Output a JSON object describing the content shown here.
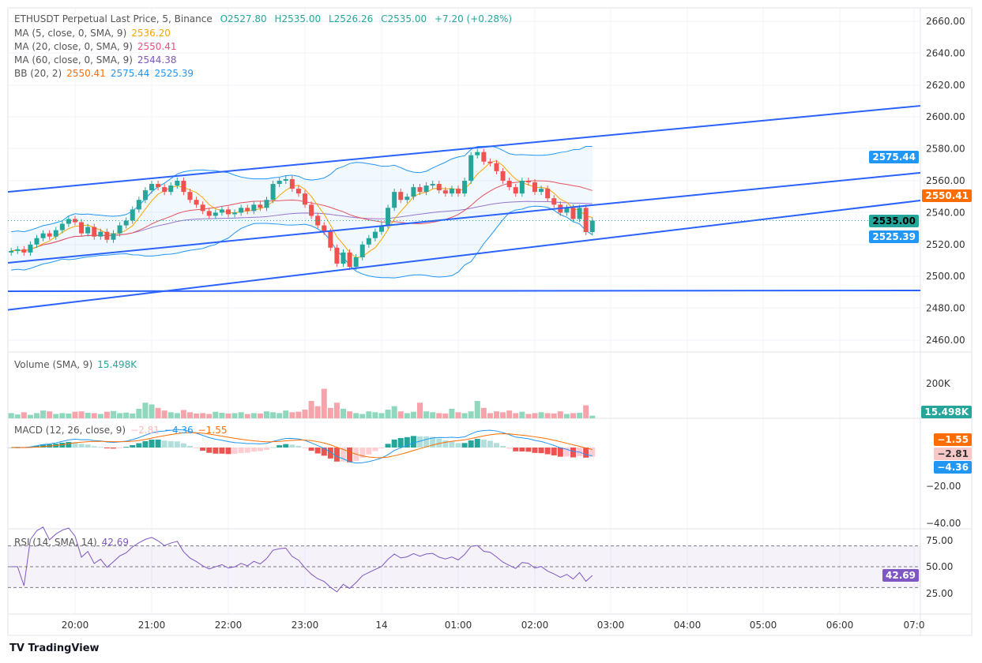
{
  "legend": {
    "title": "ETHUSDT Perpetual Last Price, 5, Binance",
    "ohlc": [
      "O2527.80",
      "H2535.00",
      "L2526.26",
      "C2535.00",
      "+7.20 (+0.28%)"
    ],
    "ma5": {
      "label": "MA (5, close, 0, SMA, 9)",
      "value": "2536.20"
    },
    "ma20": {
      "label": "MA (20, close, 0, SMA, 9)",
      "value": "2550.41"
    },
    "ma60": {
      "label": "MA (60, close, 0, SMA, 9)",
      "value": "2544.38"
    },
    "bb": {
      "label": "BB (20, 2)",
      "basis": "2550.41",
      "upper": "2575.44",
      "lower": "2525.39"
    },
    "volume": {
      "label": "Volume (SMA, 9)",
      "value": "15.498K"
    },
    "macd": {
      "label": "MACD (12, 26, close, 9)",
      "hist": "−2.81",
      "macd": "−4.36",
      "signal": "−1.55"
    },
    "rsi": {
      "label": "RSI (14, SMA, 14)",
      "value": "42.69"
    }
  },
  "price_labels": {
    "bb_upper": "2575.44",
    "bb_basis": "2550.41",
    "last": "2535.00",
    "bb_lower": "2525.39",
    "volume": "15.498K",
    "macd_signal": "−1.55",
    "macd_hist": "−2.81",
    "macd_line": "−4.36",
    "rsi": "42.69"
  },
  "colors": {
    "up": "#26a69a",
    "down": "#ef5350",
    "channel": "#2962ff",
    "bb": "#2196f3",
    "ma5": "#f7a600",
    "ma20": "#e5525b",
    "ma60": "#9575cd",
    "rsi": "#7e57c2",
    "macd": "#2196f3",
    "signal": "#ff6d00"
  },
  "branding": "TradingView",
  "chart_data": {
    "type": "candlestick",
    "start_time": "19:10",
    "interval_minutes": 5,
    "closes": [
      2516,
      2517,
      2515,
      2520,
      2524,
      2527,
      2525,
      2529,
      2533,
      2536,
      2534,
      2527,
      2531,
      2525,
      2528,
      2523,
      2527,
      2532,
      2535,
      2542,
      2548,
      2554,
      2558,
      2556,
      2553,
      2557,
      2560,
      2553,
      2548,
      2545,
      2541,
      2538,
      2540,
      2542,
      2539,
      2540,
      2543,
      2541,
      2545,
      2543,
      2548,
      2558,
      2560,
      2561,
      2555,
      2552,
      2545,
      2538,
      2532,
      2528,
      2518,
      2508,
      2515,
      2506,
      2512,
      2520,
      2524,
      2528,
      2532,
      2543,
      2553,
      2548,
      2550,
      2556,
      2553,
      2557,
      2558,
      2554,
      2552,
      2555,
      2552,
      2560,
      2576,
      2578,
      2572,
      2571,
      2566,
      2560,
      2556,
      2552,
      2560,
      2559,
      2553,
      2555,
      2549,
      2545,
      2540,
      2543,
      2536,
      2543,
      2527.8,
      2535
    ],
    "volumes_k": [
      30,
      22,
      35,
      20,
      30,
      45,
      40,
      25,
      30,
      28,
      38,
      40,
      32,
      30,
      25,
      38,
      42,
      30,
      33,
      28,
      55,
      90,
      80,
      60,
      45,
      35,
      30,
      48,
      35,
      28,
      30,
      25,
      38,
      32,
      28,
      30,
      35,
      25,
      30,
      28,
      40,
      35,
      30,
      45,
      35,
      38,
      50,
      100,
      70,
      170,
      60,
      90,
      55,
      40,
      30,
      25,
      40,
      35,
      30,
      50,
      70,
      40,
      30,
      38,
      90,
      40,
      35,
      30,
      28,
      55,
      35,
      30,
      40,
      100,
      60,
      30,
      40,
      35,
      45,
      30,
      38,
      25,
      30,
      35,
      30,
      28,
      40,
      25,
      30,
      32,
      75,
      15.5
    ],
    "price_axis": [
      "2660.00",
      "2640.00",
      "2620.00",
      "2600.00",
      "2580.00",
      "2560.00",
      "2540.00",
      "2520.00",
      "2500.00",
      "2480.00",
      "2460.00"
    ],
    "volume_axis": [
      "200K"
    ],
    "macd_axis": [
      "−20.00",
      "−40.00"
    ],
    "rsi_axis": [
      "75.00",
      "50.00",
      "25.00"
    ],
    "time_axis": [
      "20:00",
      "21:00",
      "22:00",
      "23:00",
      "14",
      "01:00",
      "02:00",
      "03:00",
      "04:00",
      "05:00",
      "06:00",
      "07:0"
    ],
    "trendlines": [
      {
        "name": "channel-upper",
        "from": [
          "19:10",
          2553
        ],
        "to": [
          "07:00",
          2607
        ]
      },
      {
        "name": "channel-middle",
        "from": [
          "19:10",
          2508.5
        ],
        "to": [
          "07:00",
          2565
        ]
      },
      {
        "name": "channel-lower",
        "from": [
          "19:10",
          2479
        ],
        "to": [
          "07:00",
          2547.6
        ]
      },
      {
        "name": "horizontal-support",
        "from": [
          "19:10",
          2490.7
        ],
        "to": [
          "07:00",
          2491.2
        ]
      }
    ]
  }
}
